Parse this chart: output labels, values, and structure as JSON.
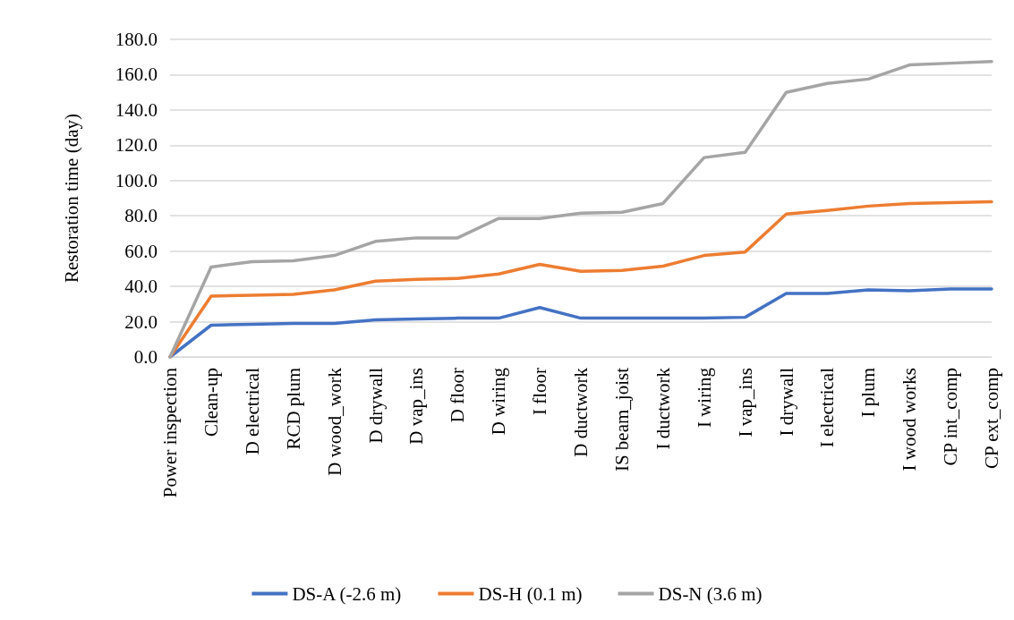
{
  "chart_data": {
    "type": "line",
    "ylabel": "Restoration time (day)",
    "categories": [
      "Power inspection",
      "Clean-up",
      "D electrical",
      "RCD plum",
      "D wood_work",
      "D drywall",
      "D vap_ins",
      "D floor",
      "D wiring",
      "I floor",
      "D ductwork",
      "IS beam_joist",
      "I ductwork",
      "I wiring",
      "I vap_ins",
      "I drywall",
      "I electrical",
      "I plum",
      "I wood works",
      "CP int_comp",
      "CP ext_comp"
    ],
    "series": [
      {
        "name": "DS-A (-2.6 m)",
        "color": "#4472c4",
        "values": [
          0,
          18,
          18.5,
          19,
          19,
          21,
          21.5,
          22,
          22,
          28,
          22,
          22,
          22,
          22,
          22.5,
          36,
          36,
          38,
          37.5,
          38.5,
          38.5
        ]
      },
      {
        "name": "DS-H (0.1 m)",
        "color": "#ed7d31",
        "values": [
          0,
          34.5,
          35,
          35.5,
          38,
          43,
          44,
          44.5,
          47,
          52.5,
          48.5,
          49,
          51.5,
          57.5,
          59.5,
          81,
          83,
          85.5,
          87,
          87.5,
          88
        ]
      },
      {
        "name": "DS-N (3.6 m)",
        "color": "#a5a5a5",
        "values": [
          0,
          51,
          54,
          54.5,
          57.5,
          65.5,
          67.5,
          67.5,
          78.5,
          78.5,
          81.5,
          82,
          87,
          113,
          116,
          150,
          155,
          157.5,
          165.5,
          166.5,
          167.5
        ]
      }
    ],
    "ylim": [
      0,
      180
    ],
    "yticks": [
      {
        "value": 0,
        "label": "0.0"
      },
      {
        "value": 20,
        "label": "20.0"
      },
      {
        "value": 40,
        "label": "40.0"
      },
      {
        "value": 60,
        "label": "60.0"
      },
      {
        "value": 80,
        "label": "80.0"
      },
      {
        "value": 100,
        "label": "100.0"
      },
      {
        "value": 120,
        "label": "120.0"
      },
      {
        "value": 140,
        "label": "140.0"
      },
      {
        "value": 160,
        "label": "160.0"
      },
      {
        "value": 180,
        "label": "180.0"
      }
    ],
    "grid": "y",
    "legend": "bottom",
    "marker": "none",
    "line_style": "solid"
  }
}
